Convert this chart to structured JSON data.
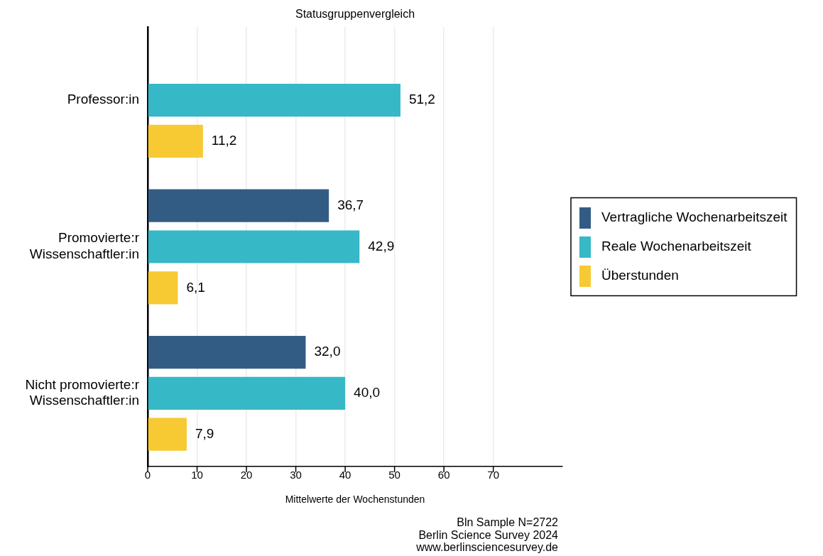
{
  "chart_data": {
    "type": "bar",
    "orientation": "horizontal",
    "title": "Statusgruppenvergleich",
    "xlabel": "Mittelwerte der Wochenstunden",
    "categories": [
      "Professor:in",
      "Promovierte:r Wissenschaftler:in",
      "Nicht promovierte:r Wissenschaftler:in"
    ],
    "series": [
      {
        "name": "Vertragliche Wochenarbeitszeit",
        "color": "#335c85",
        "values": [
          null,
          36.7,
          32.0
        ],
        "value_labels": [
          null,
          "36,7",
          "32,0"
        ]
      },
      {
        "name": "Reale Wochenarbeitszeit",
        "color": "#36b8c7",
        "values": [
          51.2,
          42.9,
          40.0
        ],
        "value_labels": [
          "51,2",
          "42,9",
          "40,0"
        ]
      },
      {
        "name": "Überstunden",
        "color": "#f7c933",
        "values": [
          11.2,
          6.1,
          7.9
        ],
        "value_labels": [
          "11,2",
          "6,1",
          "7,9"
        ]
      }
    ],
    "xlim": [
      0,
      84
    ],
    "xticks": [
      0,
      10,
      20,
      30,
      40,
      50,
      60,
      70
    ],
    "grid": "x",
    "legend": "right",
    "annotations": [
      "Bln Sample N=2722",
      "Berlin Science Survey 2024",
      "www.berlinsciencesurvey.de"
    ]
  }
}
